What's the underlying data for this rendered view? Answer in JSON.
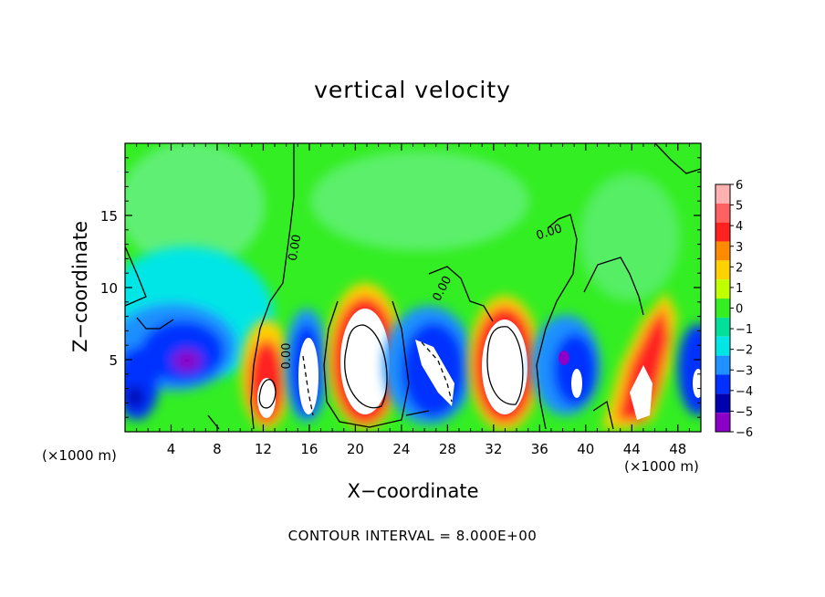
{
  "chart_data": {
    "type": "heatmap",
    "title": "vertical velocity",
    "xlabel": "X−coordinate",
    "ylabel": "Z−coordinate",
    "x_unit_label": "(×1000 m)",
    "xlim": [
      0,
      50
    ],
    "ylim": [
      0,
      20
    ],
    "x_ticks": [
      4,
      8,
      12,
      16,
      20,
      24,
      28,
      32,
      36,
      40,
      44,
      48
    ],
    "y_ticks": [
      5,
      10,
      15
    ],
    "colorbar": {
      "levels": [
        6,
        5,
        4,
        3,
        2,
        1,
        0,
        -1,
        -2,
        -3,
        -4,
        -5,
        -6
      ],
      "level_labels": [
        "6",
        "5",
        "4",
        "3",
        "2",
        "1",
        "0",
        "−1",
        "−2",
        "−3",
        "−4",
        "−5",
        "−6"
      ],
      "colors": [
        "#ffb0b0",
        "#ff6060",
        "#ff2020",
        "#ff8c00",
        "#ffd200",
        "#bfff00",
        "#33ee22",
        "#00e09a",
        "#00e6e6",
        "#1e90ff",
        "#0030ff",
        "#0000b0",
        "#8a00c8"
      ]
    },
    "contour_labels": [
      "0.00",
      "0.00",
      "0.00",
      "0.00",
      "0.00"
    ],
    "features": [
      {
        "kind": "updraft",
        "x": 12.5,
        "z": 2.5,
        "value": 9
      },
      {
        "kind": "downdraft",
        "x": 15.5,
        "z": 4.0,
        "value": -8
      },
      {
        "kind": "updraft",
        "x": 20.5,
        "z": 5.5,
        "value": 14
      },
      {
        "kind": "downdraft",
        "x": 27.5,
        "z": 4.0,
        "value": -9
      },
      {
        "kind": "updraft",
        "x": 33.0,
        "z": 5.0,
        "value": 14
      },
      {
        "kind": "downdraft",
        "x": 39.5,
        "z": 4.0,
        "value": -8
      },
      {
        "kind": "updraft",
        "x": 44.5,
        "z": 4.0,
        "value": 10
      },
      {
        "kind": "downdraft",
        "x": 4.5,
        "z": 4.5,
        "value": -5
      }
    ]
  },
  "footer": "CONTOUR INTERVAL = 8.000E+00"
}
